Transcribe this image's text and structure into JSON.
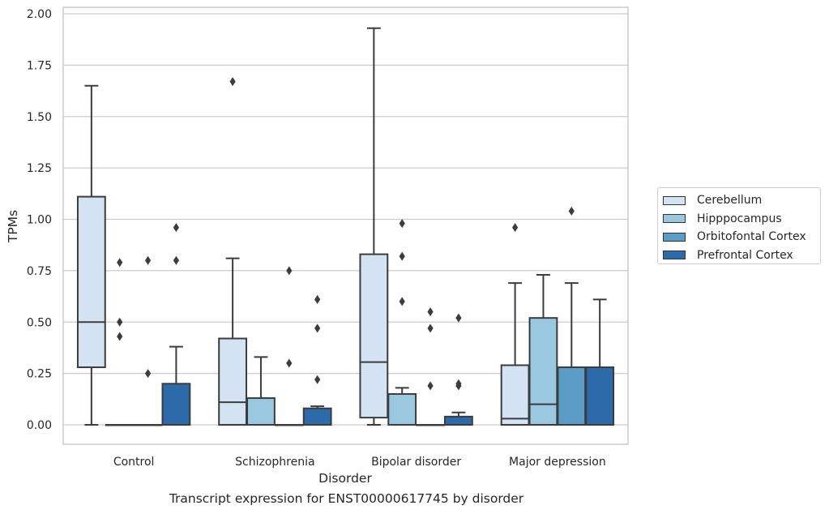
{
  "chart_data": {
    "type": "box",
    "title": "",
    "caption": "Transcript expression for ENST00000617745 by disorder",
    "xlabel": "Disorder",
    "ylabel": "TPMs",
    "ylim": [
      -0.095,
      2.03
    ],
    "yticks": [
      "0.00",
      "0.25",
      "0.50",
      "0.75",
      "1.00",
      "1.25",
      "1.50",
      "1.75",
      "2.00"
    ],
    "ytick_values": [
      0,
      0.25,
      0.5,
      0.75,
      1.0,
      1.25,
      1.5,
      1.75,
      2.0
    ],
    "grid": "horizontal",
    "legend_position": "right",
    "categories": [
      "Control",
      "Schizophrenia",
      "Bipolar disorder",
      "Major depression"
    ],
    "series": [
      {
        "name": "Cerebellum",
        "color": "#d3e3f3",
        "boxes": [
          {
            "min": 0.0,
            "q1": 0.28,
            "median": 0.5,
            "q3": 1.11,
            "max": 1.65,
            "outliers": []
          },
          {
            "min": 0.0,
            "q1": 0.0,
            "median": 0.11,
            "q3": 0.42,
            "max": 0.81,
            "outliers": [
              1.67
            ]
          },
          {
            "min": 0.0,
            "q1": 0.035,
            "median": 0.305,
            "q3": 0.83,
            "max": 1.93,
            "outliers": []
          },
          {
            "min": 0.0,
            "q1": 0.0,
            "median": 0.03,
            "q3": 0.29,
            "max": 0.69,
            "outliers": [
              0.96
            ]
          }
        ]
      },
      {
        "name": "Hipppocampus",
        "color": "#9ac8e0",
        "boxes": [
          {
            "min": 0.0,
            "q1": 0.0,
            "median": 0.0,
            "q3": 0.0,
            "max": 0.0,
            "outliers": [
              0.79,
              0.5,
              0.43
            ]
          },
          {
            "min": 0.0,
            "q1": 0.0,
            "median": 0.0,
            "q3": 0.13,
            "max": 0.33,
            "outliers": []
          },
          {
            "min": 0.0,
            "q1": 0.0,
            "median": 0.0,
            "q3": 0.15,
            "max": 0.18,
            "outliers": [
              0.98,
              0.82,
              0.6
            ]
          },
          {
            "min": 0.0,
            "q1": 0.0,
            "median": 0.1,
            "q3": 0.52,
            "max": 0.73,
            "outliers": []
          }
        ]
      },
      {
        "name": "Orbitofontal Cortex",
        "color": "#5a9cc6",
        "boxes": [
          {
            "min": 0.0,
            "q1": 0.0,
            "median": 0.0,
            "q3": 0.0,
            "max": 0.0,
            "outliers": [
              0.8,
              0.25
            ]
          },
          {
            "min": 0.0,
            "q1": 0.0,
            "median": 0.0,
            "q3": 0.0,
            "max": 0.0,
            "outliers": [
              0.75,
              0.3
            ]
          },
          {
            "min": 0.0,
            "q1": 0.0,
            "median": 0.0,
            "q3": 0.0,
            "max": 0.0,
            "outliers": [
              0.55,
              0.47,
              0.19
            ]
          },
          {
            "min": 0.0,
            "q1": 0.0,
            "median": 0.0,
            "q3": 0.28,
            "max": 0.69,
            "outliers": [
              1.04
            ]
          }
        ]
      },
      {
        "name": "Prefrontal Cortex",
        "color": "#2c6aa9",
        "boxes": [
          {
            "min": 0.0,
            "q1": 0.0,
            "median": 0.0,
            "q3": 0.2,
            "max": 0.38,
            "outliers": [
              0.96,
              0.8
            ]
          },
          {
            "min": 0.0,
            "q1": 0.0,
            "median": 0.0,
            "q3": 0.08,
            "max": 0.09,
            "outliers": [
              0.61,
              0.47,
              0.22
            ]
          },
          {
            "min": 0.0,
            "q1": 0.0,
            "median": 0.0,
            "q3": 0.04,
            "max": 0.06,
            "outliers": [
              0.52,
              0.2,
              0.19
            ]
          },
          {
            "min": 0.0,
            "q1": 0.0,
            "median": 0.0,
            "q3": 0.28,
            "max": 0.61,
            "outliers": []
          }
        ]
      }
    ]
  }
}
